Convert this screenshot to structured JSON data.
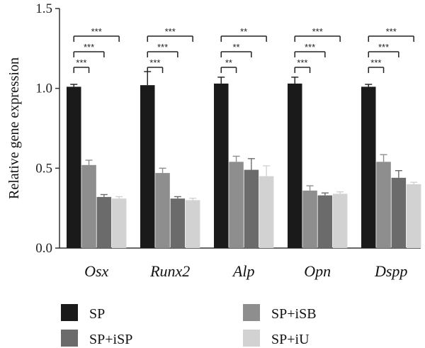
{
  "chart_data": {
    "type": "bar",
    "ylabel": "Relative gene expression",
    "ylim": [
      0,
      1.5
    ],
    "yticks": [
      "0.0",
      "0.5",
      "1.0",
      "1.5"
    ],
    "categories": [
      "Osx",
      "Runx2",
      "Alp",
      "Opn",
      "Dspp"
    ],
    "series": [
      {
        "name": "SP",
        "color": "#1a1a1a",
        "values": [
          1.01,
          1.02,
          1.03,
          1.03,
          1.01
        ],
        "errors": [
          0.015,
          0.085,
          0.04,
          0.04,
          0.015
        ]
      },
      {
        "name": "SP+iSB",
        "color": "#8e8e8e",
        "values": [
          0.52,
          0.47,
          0.54,
          0.36,
          0.54
        ],
        "errors": [
          0.03,
          0.03,
          0.035,
          0.03,
          0.045
        ]
      },
      {
        "name": "SP+iSP",
        "color": "#6b6b6b",
        "values": [
          0.32,
          0.31,
          0.49,
          0.33,
          0.44
        ],
        "errors": [
          0.015,
          0.012,
          0.07,
          0.015,
          0.045
        ]
      },
      {
        "name": "SP+iU",
        "color": "#d2d2d2",
        "values": [
          0.31,
          0.3,
          0.45,
          0.34,
          0.4
        ],
        "errors": [
          0.012,
          0.012,
          0.065,
          0.012,
          0.012
        ]
      }
    ],
    "significance": [
      [
        "***",
        "***",
        "***"
      ],
      [
        "***",
        "***",
        "***"
      ],
      [
        "**",
        "**",
        "**"
      ],
      [
        "***",
        "***",
        "***"
      ],
      [
        "***",
        "***",
        "***"
      ]
    ],
    "legend": [
      {
        "name": "SP",
        "color": "#1a1a1a"
      },
      {
        "name": "SP+iSB",
        "color": "#8e8e8e"
      },
      {
        "name": "SP+iSP",
        "color": "#6b6b6b"
      },
      {
        "name": "SP+iU",
        "color": "#d2d2d2"
      }
    ],
    "legend_position": "bottom",
    "grid": false
  }
}
